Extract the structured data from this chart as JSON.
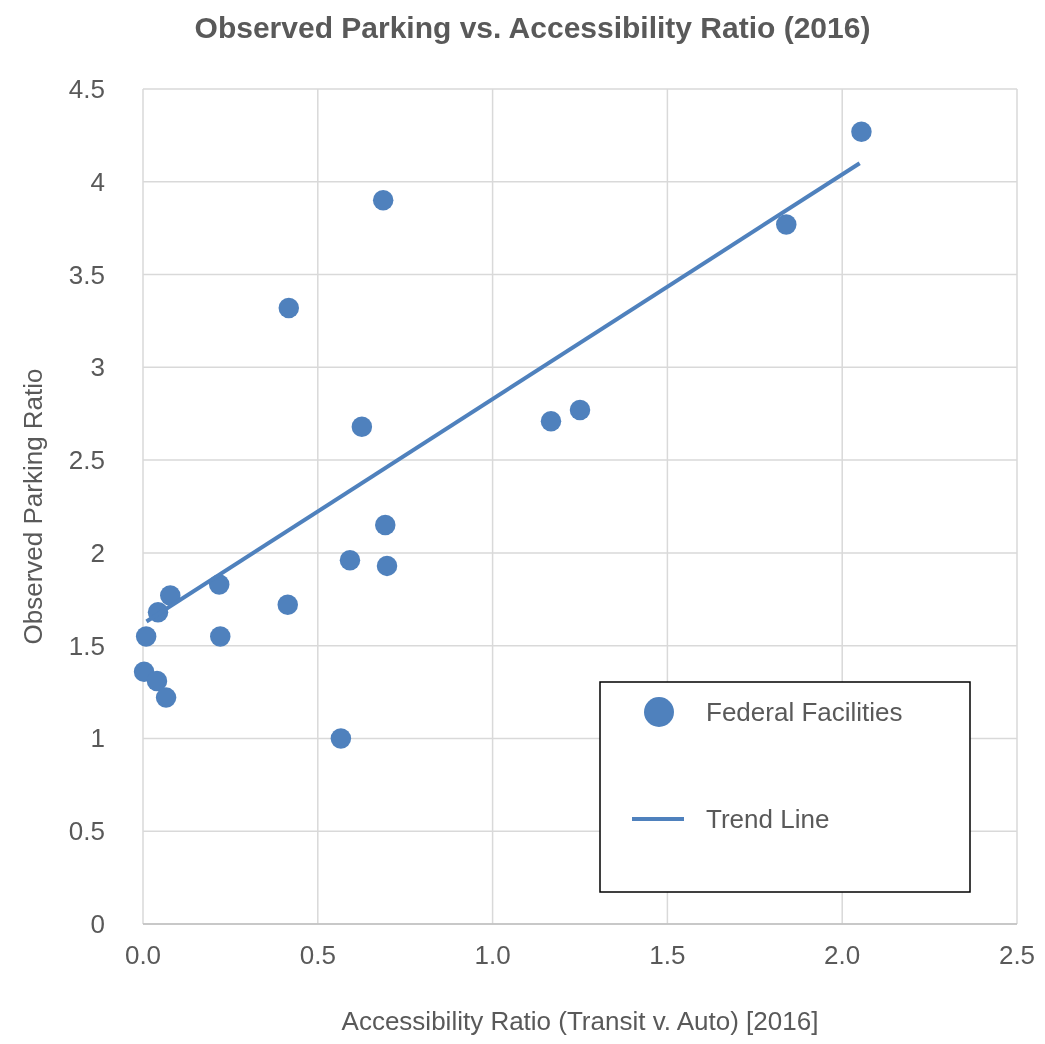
{
  "chart_data": {
    "type": "scatter",
    "title": "Observed Parking vs. Accessibility Ratio (2016)",
    "xlabel": "Accessibility Ratio (Transit v. Auto) [2016]",
    "ylabel": "Observed Parking Ratio",
    "xlim": [
      0,
      2.5
    ],
    "xticks": [
      {
        "value": 0,
        "label": "0.0"
      },
      {
        "value": 0.5,
        "label": "0.5"
      },
      {
        "value": 1,
        "label": "1.0"
      },
      {
        "value": 1.5,
        "label": "1.5"
      },
      {
        "value": 2,
        "label": "2.0"
      },
      {
        "value": 2.5,
        "label": "2.5"
      }
    ],
    "ylim": [
      0,
      4.5
    ],
    "yticks": [
      0,
      0.5,
      1,
      1.5,
      2,
      2.5,
      3,
      3.5,
      4,
      4.5
    ],
    "grid": true,
    "legend": "bottom right",
    "series": [
      {
        "name": "Federal Facilities",
        "marker": "circle",
        "color": "#4f81bd",
        "x": [
          2.055,
          1.84,
          0.687,
          0.417,
          0.626,
          1.25,
          1.167,
          0.693,
          0.592,
          0.698,
          0.078,
          0.218,
          0.043,
          0.414,
          0.009,
          0.221,
          0.003,
          0.04,
          0.066,
          0.566
        ],
        "values": [
          4.27,
          3.77,
          3.9,
          3.32,
          2.68,
          2.77,
          2.71,
          2.15,
          1.96,
          1.93,
          1.77,
          1.83,
          1.68,
          1.72,
          1.55,
          1.55,
          1.36,
          1.31,
          1.22,
          1.0
        ]
      },
      {
        "name": "Trend Line",
        "type": "line",
        "marker": "none",
        "color": "#4f81bd",
        "line_style": "solid",
        "x": [
          0.01,
          2.05
        ],
        "values": [
          1.63,
          4.1
        ]
      }
    ]
  }
}
